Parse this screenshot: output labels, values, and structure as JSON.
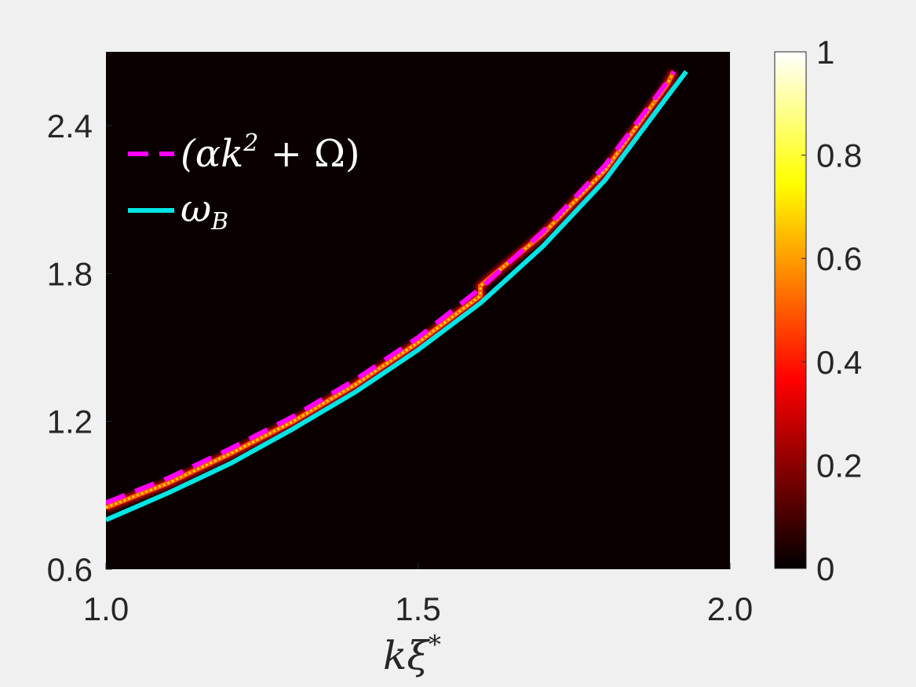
{
  "chart_data": {
    "type": "heatmap",
    "title": "",
    "xlabel": "kξ*",
    "ylabel": "",
    "xlim": [
      1.0,
      2.0
    ],
    "ylim": [
      0.6,
      2.7
    ],
    "x_ticks": [
      "1.0",
      "1.5",
      "2.0"
    ],
    "y_ticks": [
      "0.6",
      "1.2",
      "1.8",
      "2.4"
    ],
    "x_tick_values": [
      1.0,
      1.5,
      2.0
    ],
    "y_tick_values": [
      0.6,
      1.2,
      1.8,
      2.4
    ],
    "colormap": "hot",
    "colorbar": {
      "range": [
        0,
        1
      ],
      "ticks": [
        "0",
        "0.2",
        "0.4",
        "0.6",
        "0.8",
        "1"
      ],
      "tick_values": [
        0,
        0.2,
        0.4,
        0.6,
        0.8,
        1
      ]
    },
    "background_value": 0,
    "legend_position": "top-left",
    "series": [
      {
        "name": "(αk² + Ω)",
        "style": "dashed",
        "color": "#ff00ff",
        "x": [
          1.0,
          1.1,
          1.2,
          1.3,
          1.4,
          1.5,
          1.6,
          1.7,
          1.8,
          1.9,
          1.91
        ],
        "y": [
          0.87,
          0.97,
          1.09,
          1.22,
          1.37,
          1.54,
          1.74,
          1.97,
          2.24,
          2.58,
          2.62
        ]
      },
      {
        "name": "ω_B",
        "style": "solid",
        "color": "#00e5e5",
        "x": [
          1.0,
          1.1,
          1.2,
          1.3,
          1.4,
          1.5,
          1.6,
          1.7,
          1.8,
          1.9,
          1.93
        ],
        "y": [
          0.8,
          0.91,
          1.03,
          1.17,
          1.32,
          1.49,
          1.68,
          1.91,
          2.18,
          2.52,
          2.62
        ]
      },
      {
        "name": "",
        "style": "heatmap-ridge",
        "color": "#ffd000",
        "x": [
          1.0,
          1.1,
          1.2,
          1.3,
          1.4,
          1.5,
          1.6,
          1.6,
          1.7,
          1.8,
          1.9,
          1.91
        ],
        "y": [
          0.85,
          0.95,
          1.07,
          1.2,
          1.35,
          1.52,
          1.71,
          1.75,
          1.96,
          2.22,
          2.57,
          2.62
        ]
      }
    ]
  }
}
